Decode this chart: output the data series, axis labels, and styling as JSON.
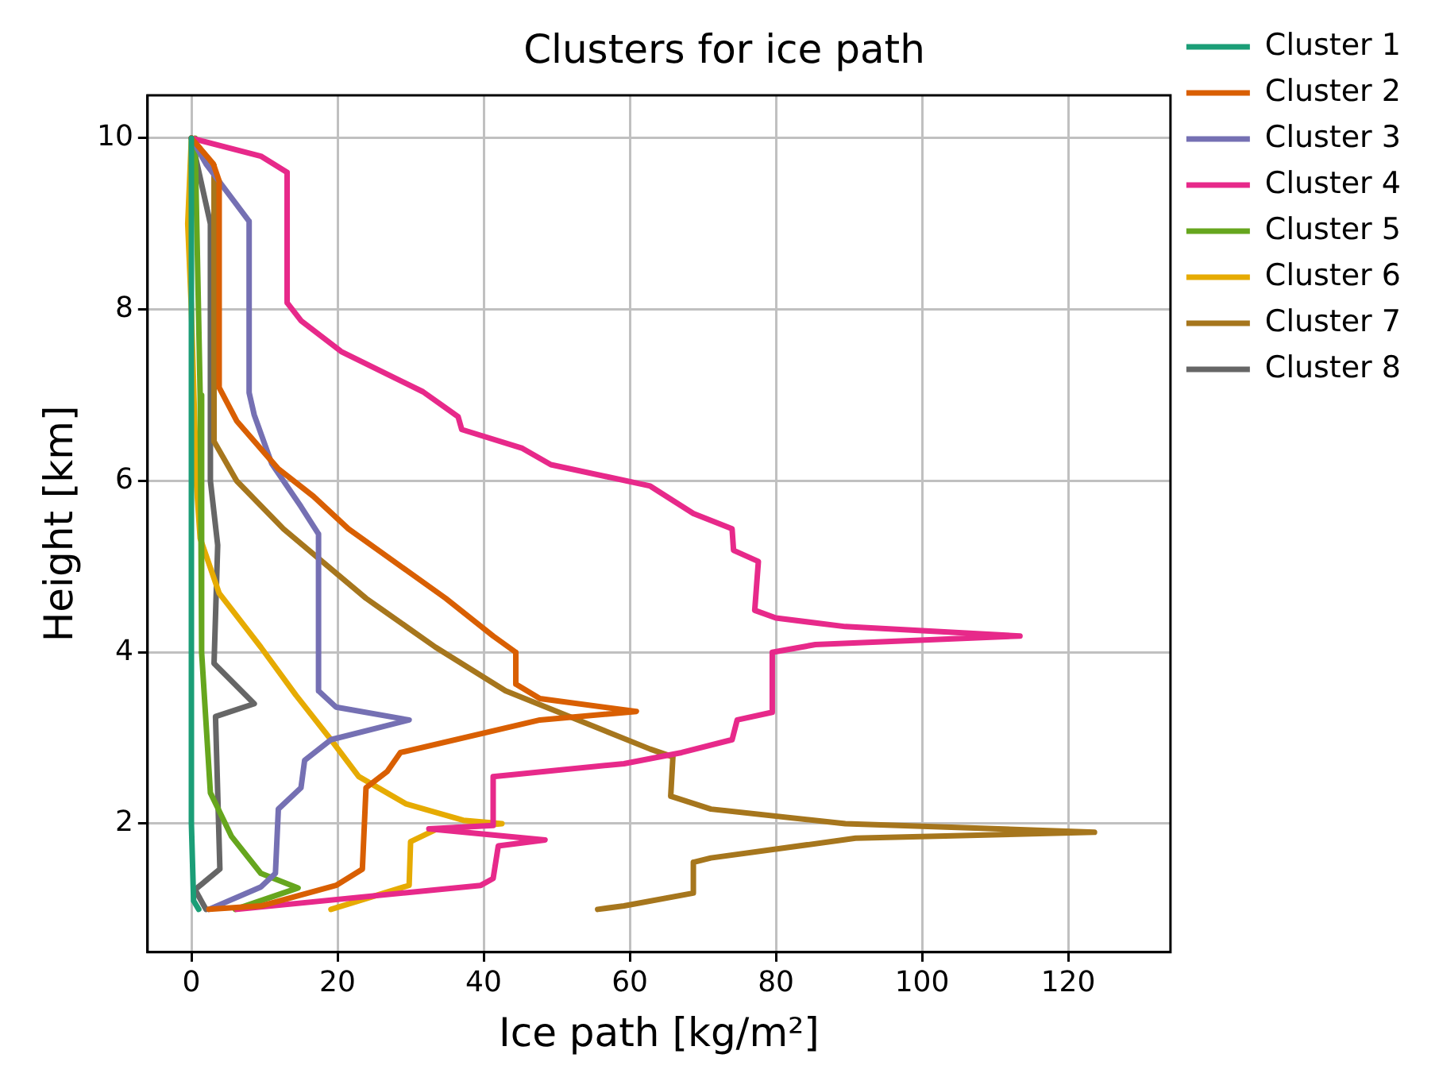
{
  "chart_data": {
    "type": "line",
    "title": "Clusters for ice path",
    "xlabel": "Ice path [kg/m²]",
    "ylabel": "Height [km]",
    "xlim": [
      -6,
      134
    ],
    "xticks": [
      0,
      20,
      40,
      60,
      80,
      100,
      120
    ],
    "ylim": [
      0.5,
      10.5
    ],
    "yticks": [
      2,
      4,
      6,
      8,
      10
    ],
    "grid": true,
    "legend": "right",
    "series": [
      {
        "name": "Cluster 1",
        "color": "#1b9e77",
        "x": [
          0,
          0,
          0.3,
          1
        ],
        "values": [
          10,
          2,
          1.1,
          1.0
        ]
      },
      {
        "name": "Cluster 2",
        "color": "#d95f02",
        "x": [
          0,
          3,
          3.8,
          3.8,
          6.2,
          11.9,
          16.7,
          21.5,
          34.8,
          41.3,
          44.4,
          44.4,
          47.7,
          60.9,
          47.7,
          28.6,
          26.8,
          23.9,
          23.4,
          19.8,
          9.5,
          2.4
        ],
        "values": [
          10,
          9.7,
          9.5,
          7.09,
          6.7,
          6.14,
          5.82,
          5.44,
          4.63,
          4.19,
          4.0,
          3.63,
          3.46,
          3.31,
          3.21,
          2.83,
          2.61,
          2.42,
          1.47,
          1.28,
          1.04,
          1.0
        ]
      },
      {
        "name": "Cluster 3",
        "color": "#7570b3",
        "x": [
          0,
          2,
          7.9,
          7.9,
          8.6,
          11,
          15,
          17.4,
          17.4,
          19.8,
          29.8,
          19.1,
          15.5,
          15,
          11.9,
          11.5,
          9.5,
          2.4
        ],
        "values": [
          10,
          9.7,
          9.03,
          7.03,
          6.77,
          6.2,
          5.7,
          5.38,
          3.55,
          3.36,
          3.21,
          2.98,
          2.74,
          2.42,
          2.17,
          1.42,
          1.26,
          1.0
        ]
      },
      {
        "name": "Cluster 4",
        "color": "#e7298a",
        "x": [
          0,
          9.5,
          13.1,
          13.1,
          15,
          20.5,
          31.7,
          36.5,
          37,
          45.3,
          49.2,
          62.8,
          68.7,
          74,
          74.2,
          77.6,
          77.1,
          80,
          89.5,
          113.4,
          85.4,
          79.5,
          79.5,
          74.7,
          74,
          67.1,
          59.2,
          41.3,
          41.3,
          32.5,
          48.4,
          42,
          41.3,
          39.6,
          6.2
        ],
        "values": [
          10,
          9.79,
          9.6,
          8.08,
          7.87,
          7.51,
          7.04,
          6.75,
          6.6,
          6.38,
          6.19,
          5.94,
          5.62,
          5.44,
          5.19,
          5.06,
          4.49,
          4.4,
          4.3,
          4.19,
          4.09,
          4.0,
          3.3,
          3.21,
          2.98,
          2.83,
          2.7,
          2.55,
          1.98,
          1.94,
          1.81,
          1.74,
          1.36,
          1.28,
          1.0
        ]
      },
      {
        "name": "Cluster 5",
        "color": "#66a61e",
        "x": [
          0.5,
          1.2,
          1.4,
          2.6,
          5.5,
          9.5,
          14.6,
          6
        ],
        "values": [
          10,
          7,
          4,
          2.36,
          1.85,
          1.42,
          1.25,
          1.0
        ]
      },
      {
        "name": "Cluster 6",
        "color": "#e6ab02",
        "x": [
          0,
          -0.5,
          0,
          0.7,
          1.2,
          3.8,
          9.5,
          14.3,
          19.1,
          22.9,
          29.4,
          37.2,
          42.5,
          33.4,
          30,
          29.8,
          19.1
        ],
        "values": [
          10,
          9,
          8,
          5.95,
          5.33,
          4.69,
          4.06,
          3.5,
          2.98,
          2.55,
          2.23,
          2.04,
          2.0,
          1.93,
          1.79,
          1.28,
          1.0
        ]
      },
      {
        "name": "Cluster 7",
        "color": "#a6761d",
        "x": [
          0,
          3.1,
          3.1,
          6.2,
          12.6,
          23.9,
          33.4,
          43,
          62.8,
          65.9,
          65.6,
          71.1,
          89.5,
          123.6,
          90.9,
          71.1,
          68.7,
          68.7,
          59.2,
          55.6
        ],
        "values": [
          10,
          9.68,
          6.46,
          6.0,
          5.44,
          4.63,
          4.06,
          3.55,
          2.87,
          2.78,
          2.32,
          2.17,
          2.0,
          1.9,
          1.83,
          1.6,
          1.55,
          1.19,
          1.04,
          1.0
        ]
      },
      {
        "name": "Cluster 8",
        "color": "#666666",
        "x": [
          0,
          2.6,
          2.6,
          3.6,
          3.1,
          8.6,
          3.3,
          3.9,
          0.5,
          2
        ],
        "values": [
          10,
          9.0,
          6.0,
          5.25,
          3.87,
          3.4,
          3.25,
          1.47,
          1.23,
          1.0
        ]
      }
    ]
  }
}
